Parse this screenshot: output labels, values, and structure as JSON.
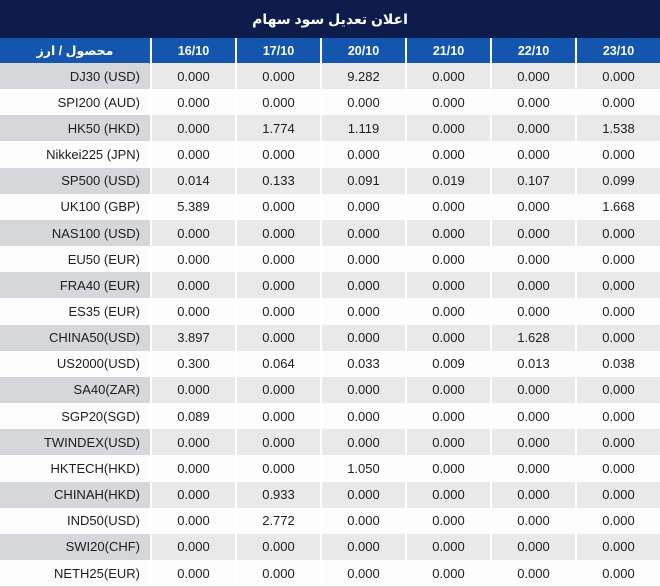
{
  "colors": {
    "title_bg": "#0e1c4b",
    "header_bg": "#1456ae",
    "header_text": "#ffffff",
    "row_stripe_label_bg": "#d5d7db",
    "row_stripe_value_bg": "#e9e9e9",
    "row_white_bg": "#fdfdfd",
    "value_text": "#1d1d22",
    "highlight_red": "#ee2524"
  },
  "title": "اعلان تعديل سود سهام",
  "table": {
    "product_currency_header": "محصول / ارز",
    "date_columns": [
      "16/10",
      "17/10",
      "20/10",
      "21/10",
      "22/10",
      "23/10"
    ],
    "rows": [
      {
        "name": "DJ30 (USD)",
        "values": [
          "0.000",
          "0.000",
          "9.282",
          "0.000",
          "0.000",
          "0.000"
        ],
        "red": [
          2
        ]
      },
      {
        "name": "SPI200 (AUD)",
        "values": [
          "0.000",
          "0.000",
          "0.000",
          "0.000",
          "0.000",
          "0.000"
        ],
        "red": []
      },
      {
        "name": "HK50 (HKD)",
        "values": [
          "0.000",
          "1.774",
          "1.119",
          "0.000",
          "0.000",
          "1.538"
        ],
        "red": [
          1,
          2,
          5
        ]
      },
      {
        "name": "Nikkei225 (JPN)",
        "values": [
          "0.000",
          "0.000",
          "0.000",
          "0.000",
          "0.000",
          "0.000"
        ],
        "red": []
      },
      {
        "name": "SP500 (USD)",
        "values": [
          "0.014",
          "0.133",
          "0.091",
          "0.019",
          "0.107",
          "0.099"
        ],
        "red": [
          0,
          1,
          2,
          3,
          4,
          5
        ]
      },
      {
        "name": "UK100 (GBP)",
        "values": [
          "5.389",
          "0.000",
          "0.000",
          "0.000",
          "0.000",
          "1.668"
        ],
        "red": [
          0,
          5
        ]
      },
      {
        "name": "NAS100 (USD)",
        "values": [
          "0.000",
          "0.000",
          "0.000",
          "0.000",
          "0.000",
          "0.000"
        ],
        "red": []
      },
      {
        "name": "EU50 (EUR)",
        "values": [
          "0.000",
          "0.000",
          "0.000",
          "0.000",
          "0.000",
          "0.000"
        ],
        "red": []
      },
      {
        "name": "FRA40 (EUR)",
        "values": [
          "0.000",
          "0.000",
          "0.000",
          "0.000",
          "0.000",
          "0.000"
        ],
        "red": []
      },
      {
        "name": "ES35 (EUR)",
        "values": [
          "0.000",
          "0.000",
          "0.000",
          "0.000",
          "0.000",
          "0.000"
        ],
        "red": []
      },
      {
        "name": "CHINA50(USD)",
        "values": [
          "3.897",
          "0.000",
          "0.000",
          "0.000",
          "1.628",
          "0.000"
        ],
        "red": [
          0,
          4
        ]
      },
      {
        "name": "US2000(USD)",
        "values": [
          "0.300",
          "0.064",
          "0.033",
          "0.009",
          "0.013",
          "0.038"
        ],
        "red": [
          0,
          1,
          2,
          3,
          4,
          5
        ]
      },
      {
        "name": "SA40(ZAR)",
        "values": [
          "0.000",
          "0.000",
          "0.000",
          "0.000",
          "0.000",
          "0.000"
        ],
        "red": []
      },
      {
        "name": "SGP20(SGD)",
        "values": [
          "0.089",
          "0.000",
          "0.000",
          "0.000",
          "0.000",
          "0.000"
        ],
        "red": [
          0
        ]
      },
      {
        "name": "TWINDEX(USD)",
        "values": [
          "0.000",
          "0.000",
          "0.000",
          "0.000",
          "0.000",
          "0.000"
        ],
        "red": []
      },
      {
        "name": "HKTECH(HKD)",
        "values": [
          "0.000",
          "0.000",
          "1.050",
          "0.000",
          "0.000",
          "0.000"
        ],
        "red": [
          2
        ]
      },
      {
        "name": "CHINAH(HKD)",
        "values": [
          "0.000",
          "0.933",
          "0.000",
          "0.000",
          "0.000",
          "0.000"
        ],
        "red": [
          1
        ]
      },
      {
        "name": "IND50(USD)",
        "values": [
          "0.000",
          "2.772",
          "0.000",
          "0.000",
          "0.000",
          "0.000"
        ],
        "red": [
          1
        ]
      },
      {
        "name": "SWI20(CHF)",
        "values": [
          "0.000",
          "0.000",
          "0.000",
          "0.000",
          "0.000",
          "0.000"
        ],
        "red": []
      },
      {
        "name": "NETH25(EUR)",
        "values": [
          "0.000",
          "0.000",
          "0.000",
          "0.000",
          "0.000",
          "0.000"
        ],
        "red": []
      }
    ]
  }
}
